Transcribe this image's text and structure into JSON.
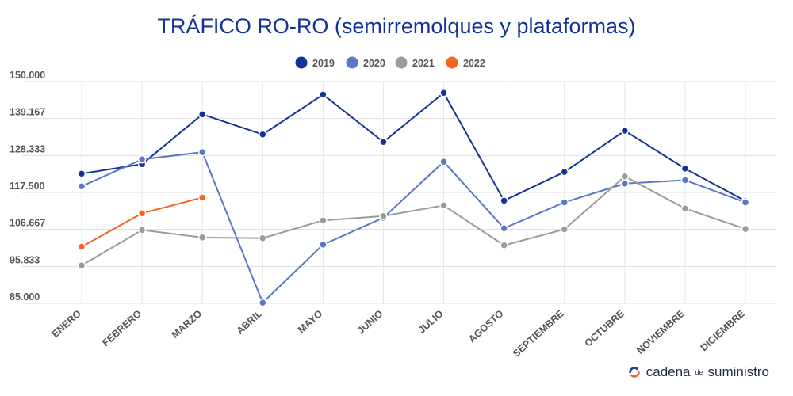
{
  "chart_data": {
    "type": "line",
    "title": "TRÁFICO RO-RO (semirremolques y plataformas)",
    "categories": [
      "ENERO",
      "FEBRERO",
      "MARZO",
      "ABRIL",
      "MAYO",
      "JUNIO",
      "JULIO",
      "AGOSTO",
      "SEPTIEMBRE",
      "OCTUBRE",
      "NOVIEMBRE",
      "DICIEMBRE"
    ],
    "y_ticks": [
      "150.000",
      "139.167",
      "128.333",
      "117.500",
      "106.667",
      "95.833",
      "85.000"
    ],
    "ylim": [
      85000,
      150000
    ],
    "grid": true,
    "legend_position": "top-center",
    "series": [
      {
        "name": "2019",
        "color": "#15329a",
        "values": [
          123000,
          125800,
          140400,
          134500,
          146200,
          132300,
          146700,
          115100,
          123500,
          135600,
          124500,
          115000
        ]
      },
      {
        "name": "2020",
        "color": "#5b77c7",
        "values": [
          119300,
          127200,
          129300,
          85200,
          102200,
          110100,
          126500,
          107000,
          114600,
          120100,
          121100,
          114600
        ]
      },
      {
        "name": "2021",
        "color": "#9b9b9b",
        "values": [
          96100,
          106500,
          104300,
          104100,
          109300,
          110600,
          113700,
          102000,
          106700,
          122200,
          112800,
          106800
        ]
      },
      {
        "name": "2022",
        "color": "#f26522",
        "values": [
          101600,
          111400,
          116000,
          null,
          null,
          null,
          null,
          null,
          null,
          null,
          null,
          null
        ]
      }
    ]
  },
  "brand": {
    "name_part1": "cadena",
    "name_small": "de",
    "name_part2": "suministro"
  }
}
